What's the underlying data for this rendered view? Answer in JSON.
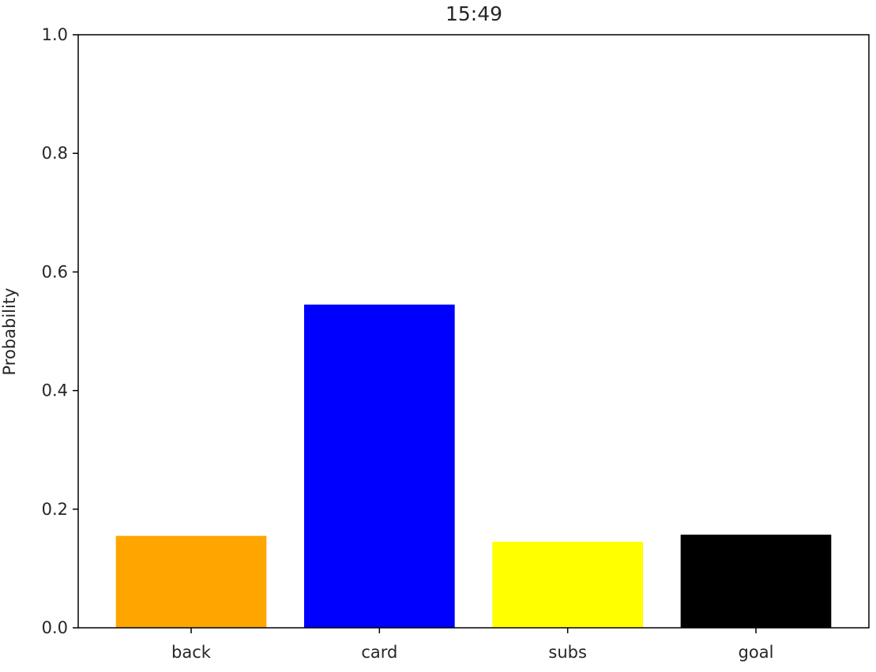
{
  "chart_data": {
    "type": "bar",
    "title": "15:49",
    "xlabel": "",
    "ylabel": "Probability",
    "categories": [
      "back",
      "card",
      "subs",
      "goal"
    ],
    "values": [
      0.155,
      0.545,
      0.145,
      0.157
    ],
    "colors": [
      "#ffa500",
      "#0000ff",
      "#ffff00",
      "#000000"
    ],
    "ylim": [
      0,
      1.0
    ],
    "yticks": [
      0.0,
      0.2,
      0.4,
      0.6,
      0.8,
      1.0
    ],
    "ytick_labels": [
      "0.0",
      "0.2",
      "0.4",
      "0.6",
      "0.8",
      "1.0"
    ],
    "grid": false,
    "legend": false
  }
}
